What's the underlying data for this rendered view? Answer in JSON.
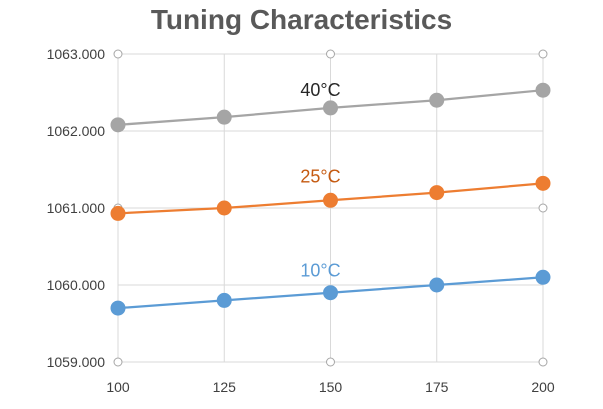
{
  "chart_data": {
    "type": "line",
    "title": "Tuning Characteristics",
    "xlabel": "",
    "ylabel": "",
    "x": [
      100,
      125,
      150,
      175,
      200
    ],
    "x_tick_labels": [
      "100",
      "125",
      "150",
      "175",
      "200"
    ],
    "xlim": [
      100,
      200
    ],
    "y_tick_values": [
      1059,
      1060,
      1061,
      1062,
      1063
    ],
    "y_tick_labels": [
      "1059.000",
      "1060.000",
      "1061.000",
      "1062.000",
      "1063.000"
    ],
    "ylim": [
      1059,
      1063
    ],
    "grid": true,
    "legend": "none",
    "series": [
      {
        "name": "40°C",
        "color": "#A5A5A5",
        "label_color": "#262626",
        "values": [
          1062.08,
          1062.18,
          1062.3,
          1062.4,
          1062.53
        ]
      },
      {
        "name": "25°C",
        "color": "#ED7D31",
        "label_color": "#C55A11",
        "values": [
          1060.93,
          1061.0,
          1061.1,
          1061.2,
          1061.32
        ]
      },
      {
        "name": "10°C",
        "color": "#5B9BD5",
        "label_color": "#5B9BD5",
        "values": [
          1059.7,
          1059.8,
          1059.9,
          1060.0,
          1060.1
        ]
      }
    ]
  }
}
